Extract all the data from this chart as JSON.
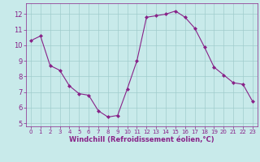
{
  "x": [
    0,
    1,
    2,
    3,
    4,
    5,
    6,
    7,
    8,
    9,
    10,
    11,
    12,
    13,
    14,
    15,
    16,
    17,
    18,
    19,
    20,
    21,
    22,
    23
  ],
  "y": [
    10.3,
    10.6,
    8.7,
    8.4,
    7.4,
    6.9,
    6.8,
    5.8,
    5.4,
    5.5,
    7.2,
    9.0,
    11.8,
    11.9,
    12.0,
    12.2,
    11.8,
    11.1,
    9.9,
    8.6,
    8.1,
    7.6,
    7.5,
    6.4
  ],
  "line_color": "#882288",
  "marker": "D",
  "marker_size": 2.0,
  "bg_color": "#c8eaea",
  "grid_color": "#a0cccc",
  "xlabel": "Windchill (Refroidissement éolien,°C)",
  "xlabel_color": "#882288",
  "tick_color": "#882288",
  "ylim": [
    4.8,
    12.7
  ],
  "yticks": [
    5,
    6,
    7,
    8,
    9,
    10,
    11,
    12
  ],
  "xlim": [
    -0.5,
    23.5
  ],
  "xticks": [
    0,
    1,
    2,
    3,
    4,
    5,
    6,
    7,
    8,
    9,
    10,
    11,
    12,
    13,
    14,
    15,
    16,
    17,
    18,
    19,
    20,
    21,
    22,
    23
  ],
  "xtick_fontsize": 5.0,
  "ytick_fontsize": 6.0,
  "xlabel_fontsize": 6.0
}
